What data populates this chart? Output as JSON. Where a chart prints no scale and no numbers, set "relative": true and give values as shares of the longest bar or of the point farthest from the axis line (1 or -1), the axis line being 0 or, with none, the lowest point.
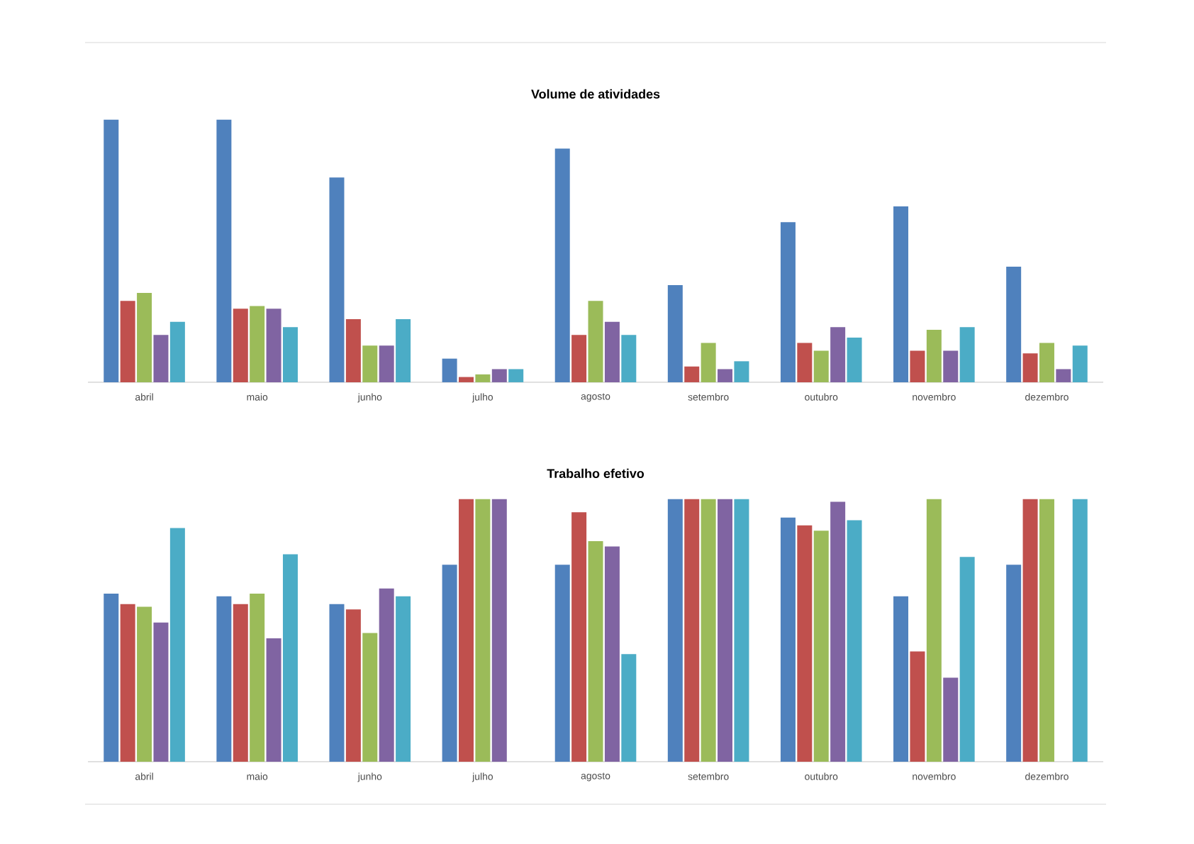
{
  "chart_data": [
    {
      "type": "bar",
      "title": "Volume de atividades",
      "relative": true,
      "categories": [
        "abril",
        "maio",
        "junho",
        "julho",
        "agosto",
        "setembro",
        "outubro",
        "novembro",
        "dezembro"
      ],
      "series": [
        {
          "color": "#4f81bd",
          "values": [
            1.0,
            1.0,
            0.78,
            0.09,
            0.89,
            0.37,
            0.61,
            0.67,
            0.44
          ]
        },
        {
          "color": "#c0504d",
          "values": [
            0.31,
            0.28,
            0.24,
            0.02,
            0.18,
            0.06,
            0.15,
            0.12,
            0.11
          ]
        },
        {
          "color": "#9bbb59",
          "values": [
            0.34,
            0.29,
            0.14,
            0.03,
            0.31,
            0.15,
            0.12,
            0.2,
            0.15
          ]
        },
        {
          "color": "#8064a2",
          "values": [
            0.18,
            0.28,
            0.14,
            0.05,
            0.23,
            0.05,
            0.21,
            0.12,
            0.05
          ]
        },
        {
          "color": "#4bacc6",
          "values": [
            0.23,
            0.21,
            0.24,
            0.05,
            0.18,
            0.08,
            0.17,
            0.21,
            0.14
          ]
        }
      ]
    },
    {
      "type": "bar",
      "title": "Trabalho efetivo",
      "relative": true,
      "categories": [
        "abril",
        "maio",
        "junho",
        "julho",
        "agosto",
        "setembro",
        "outubro",
        "novembro",
        "dezembro"
      ],
      "series": [
        {
          "color": "#4f81bd",
          "values": [
            0.64,
            0.63,
            0.6,
            0.75,
            0.75,
            1.0,
            0.93,
            0.63,
            0.75
          ]
        },
        {
          "color": "#c0504d",
          "values": [
            0.6,
            0.6,
            0.58,
            1.0,
            0.95,
            1.0,
            0.9,
            0.42,
            1.0
          ]
        },
        {
          "color": "#9bbb59",
          "values": [
            0.59,
            0.64,
            0.49,
            1.0,
            0.84,
            1.0,
            0.88,
            1.0,
            1.0
          ]
        },
        {
          "color": "#8064a2",
          "values": [
            0.53,
            0.47,
            0.66,
            1.0,
            0.82,
            1.0,
            0.99,
            0.32,
            0.0
          ]
        },
        {
          "color": "#4bacc6",
          "values": [
            0.89,
            0.79,
            0.63,
            0.0,
            0.41,
            1.0,
            0.92,
            0.78,
            1.0
          ]
        }
      ]
    }
  ]
}
